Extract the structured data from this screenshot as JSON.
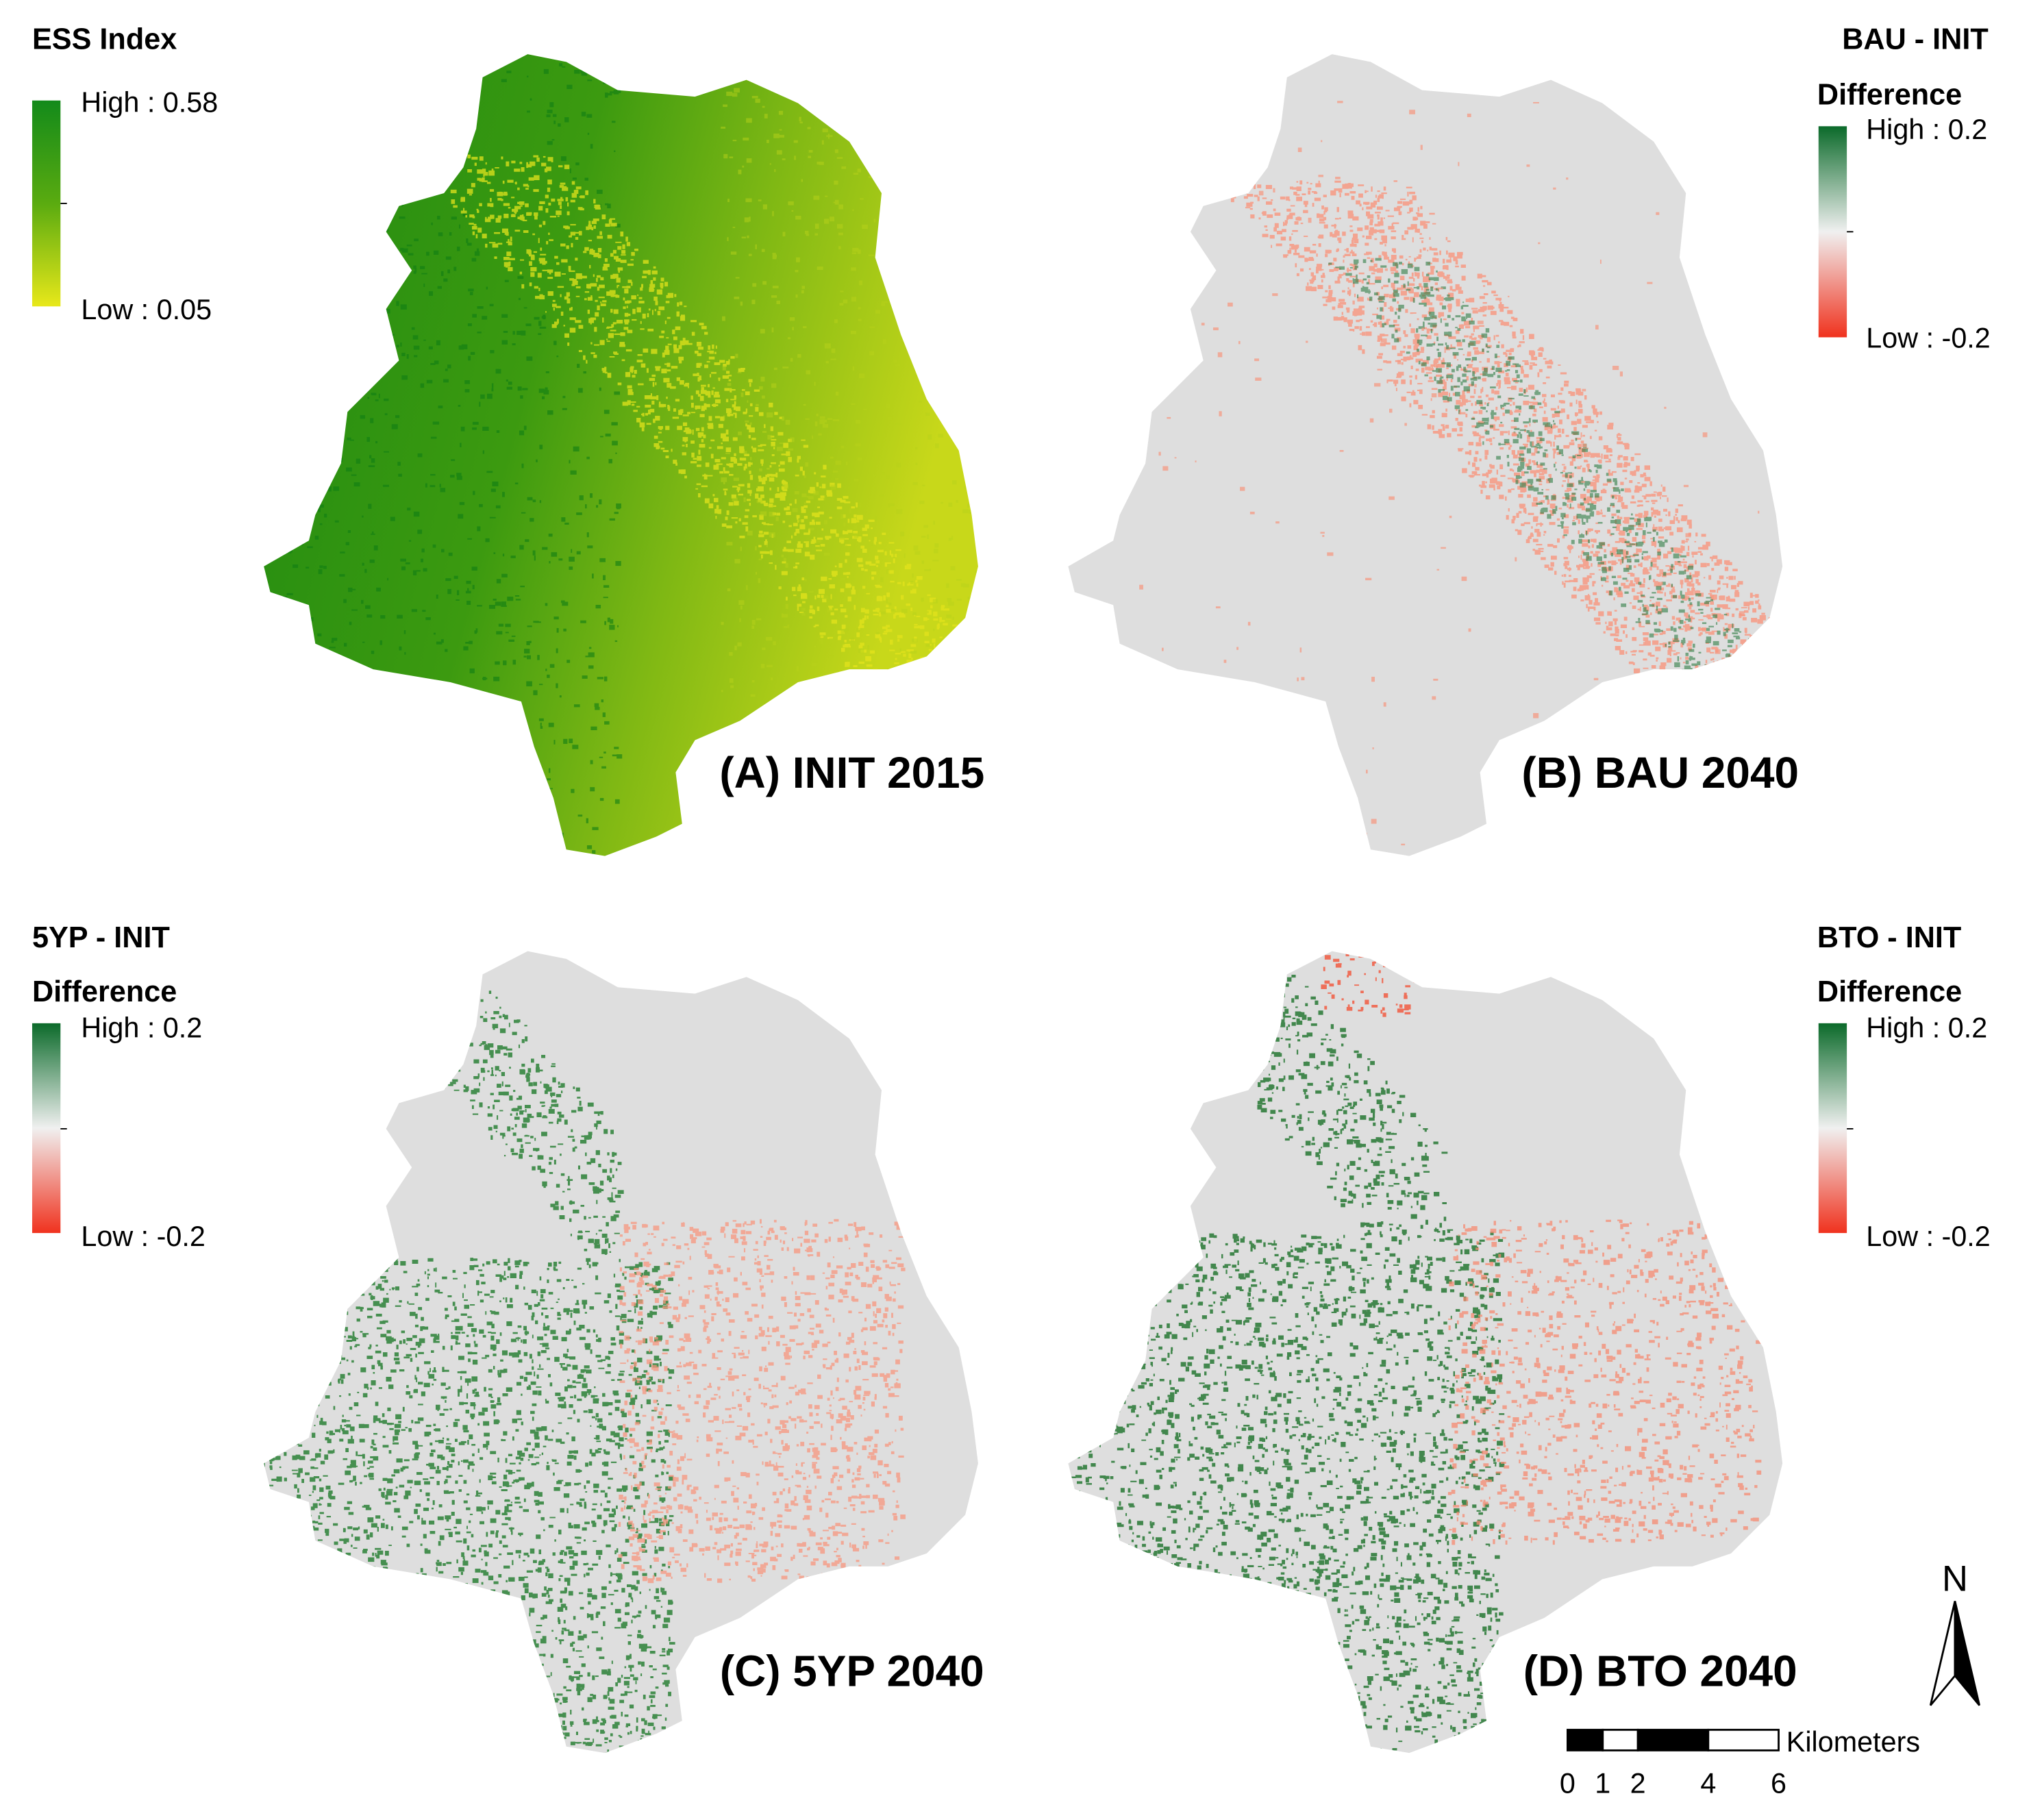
{
  "panels": [
    {
      "label": "(A) INIT 2015",
      "legend": {
        "title": "ESS Index",
        "high": "High : 0.58",
        "low": "Low : 0.05"
      }
    },
    {
      "label": "(B) BAU 2040",
      "legend": {
        "title": "BAU - INIT",
        "subtitle": "Difference",
        "high": "High : 0.2",
        "low": "Low : -0.2"
      }
    },
    {
      "label": "(C) 5YP 2040",
      "legend": {
        "title": "5YP - INIT",
        "subtitle": "Difference",
        "high": "High : 0.2",
        "low": "Low : -0.2"
      }
    },
    {
      "label": "(D) BTO 2040",
      "legend": {
        "title": "BTO - INIT",
        "subtitle": "Difference",
        "high": "High : 0.2",
        "low": "Low : -0.2"
      }
    }
  ],
  "north_arrow": "N",
  "scale_bar": {
    "unit": "Kilometers",
    "ticks": [
      0,
      1,
      2,
      4,
      6
    ]
  }
}
